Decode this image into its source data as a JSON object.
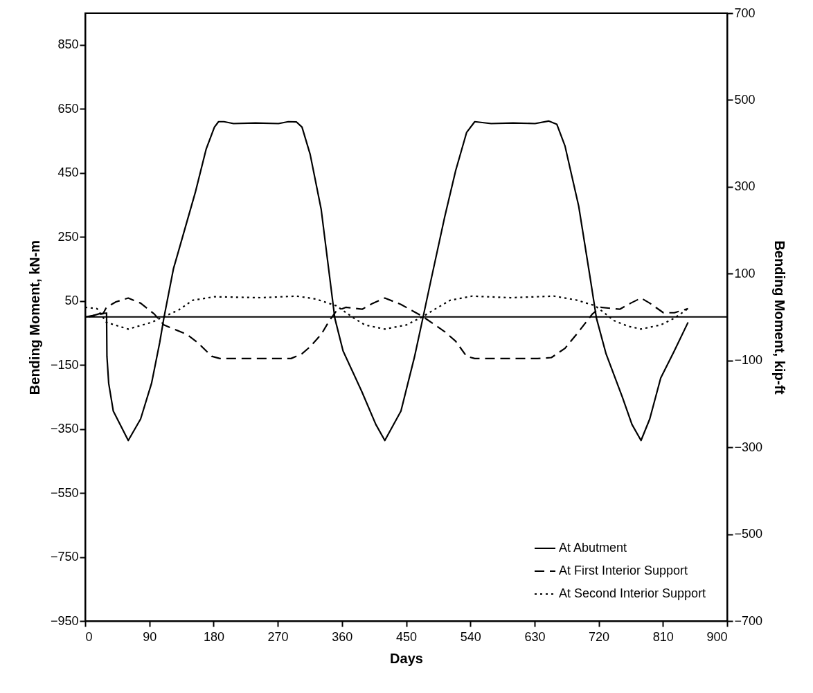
{
  "chart_data": {
    "type": "line",
    "xlabel": "Days",
    "ylabel": "Bending Moment, kN-m",
    "y2label": "Bending Moment, kip-ft",
    "xlim": [
      0,
      900
    ],
    "xticks": [
      0,
      90,
      180,
      270,
      360,
      450,
      540,
      630,
      720,
      810,
      900
    ],
    "ylim": [
      -950,
      949
    ],
    "yticks": [
      -950,
      -750,
      -550,
      -350,
      -150,
      50,
      250,
      450,
      650,
      850
    ],
    "y2lim": [
      -700,
      700
    ],
    "y2ticks": [
      -700,
      -500,
      -300,
      -100,
      100,
      300,
      500,
      700
    ],
    "legend": "bottom right",
    "grid": false,
    "marker": "none",
    "ref_lines": [
      {
        "axis": "y",
        "value": 0,
        "color": "#000000"
      }
    ],
    "series": [
      {
        "name": "At Abutment",
        "color": "#000000",
        "line_style": "solid",
        "x": [
          5,
          20,
          30,
          30.5,
          33,
          39.4,
          60.4,
          77.7,
          93,
          104.5,
          110.3,
          123.7,
          139,
          154.4,
          169.7,
          181.2,
          187,
          194.6,
          208,
          238.7,
          271,
          284.8,
          296.3,
          304,
          315.4,
          330.8,
          342.3,
          350,
          361.5,
          388,
          407.5,
          420.1,
          442.7,
          461.9,
          473.4,
          484.9,
          504,
          519.4,
          534.7,
          546.2,
          569.2,
          599.9,
          630.6,
          649.7,
          661.2,
          672.7,
          691.9,
          707.2,
          716.8,
          730.2,
          753.2,
          766.6,
          779.3,
          791.5,
          806.9,
          826,
          845.2
        ],
        "values": [
          0,
          10,
          12,
          -123,
          -208,
          -294,
          -386,
          -319,
          -208,
          -80,
          -4,
          150,
          269,
          389,
          525,
          593,
          610,
          610,
          604,
          606,
          604,
          610,
          609,
          593,
          508,
          337,
          133,
          -4,
          -106,
          -234,
          -336,
          -386,
          -294,
          -123,
          -4,
          116,
          312,
          457,
          576,
          610,
          604,
          606,
          604,
          612,
          602,
          534,
          346,
          133,
          -4,
          -115,
          -251,
          -336,
          -386,
          -319,
          -191,
          -106,
          -17
        ]
      },
      {
        "name": "At First Interior Support",
        "color": "#000000",
        "line_style": "dashed",
        "x": [
          0,
          25,
          29.8,
          43.2,
          60.4,
          77.7,
          96.9,
          110.3,
          142.9,
          158.2,
          177.4,
          188.9,
          246.4,
          288.6,
          304,
          315.4,
          330.8,
          342.3,
          351.9,
          365.3,
          388.3,
          403.6,
          420.1,
          442.7,
          473.4,
          504,
          519.4,
          534.7,
          546.2,
          634.4,
          653.6,
          672.7,
          691.9,
          711,
          722.6,
          749.4,
          764.8,
          779.3,
          791.5,
          810.7,
          826,
          845.2
        ],
        "values": [
          0,
          10,
          30,
          47,
          59,
          43,
          9,
          -25,
          -55,
          -81,
          -123,
          -130,
          -130,
          -130,
          -115,
          -93,
          -55,
          -12,
          18,
          30,
          24,
          43,
          59,
          39,
          1,
          -46,
          -76,
          -123,
          -130,
          -130,
          -127,
          -98,
          -46,
          9,
          30,
          24,
          43,
          59,
          43,
          13,
          13,
          26
        ]
      },
      {
        "name": "At Second Interior Support",
        "color": "#000000",
        "line_style": "dotted",
        "x": [
          0,
          16.5,
          29.8,
          60.4,
          93,
          110.3,
          131.4,
          150.6,
          181.2,
          246.4,
          296.3,
          323.1,
          351.9,
          376.8,
          392.1,
          420.1,
          450.4,
          473.4,
          488.7,
          511.7,
          542.4,
          596.1,
          657.4,
          688.1,
          714.9,
          741.8,
          761,
          779.3,
          806.9,
          826,
          845.2
        ],
        "values": [
          30,
          26,
          -17,
          -38,
          -17,
          1,
          22,
          52,
          63,
          60,
          65,
          56,
          35,
          -4,
          -25,
          -38,
          -25,
          1,
          22,
          52,
          65,
          60,
          65,
          53,
          35,
          -12,
          -29,
          -38,
          -25,
          -4,
          26
        ]
      }
    ]
  }
}
